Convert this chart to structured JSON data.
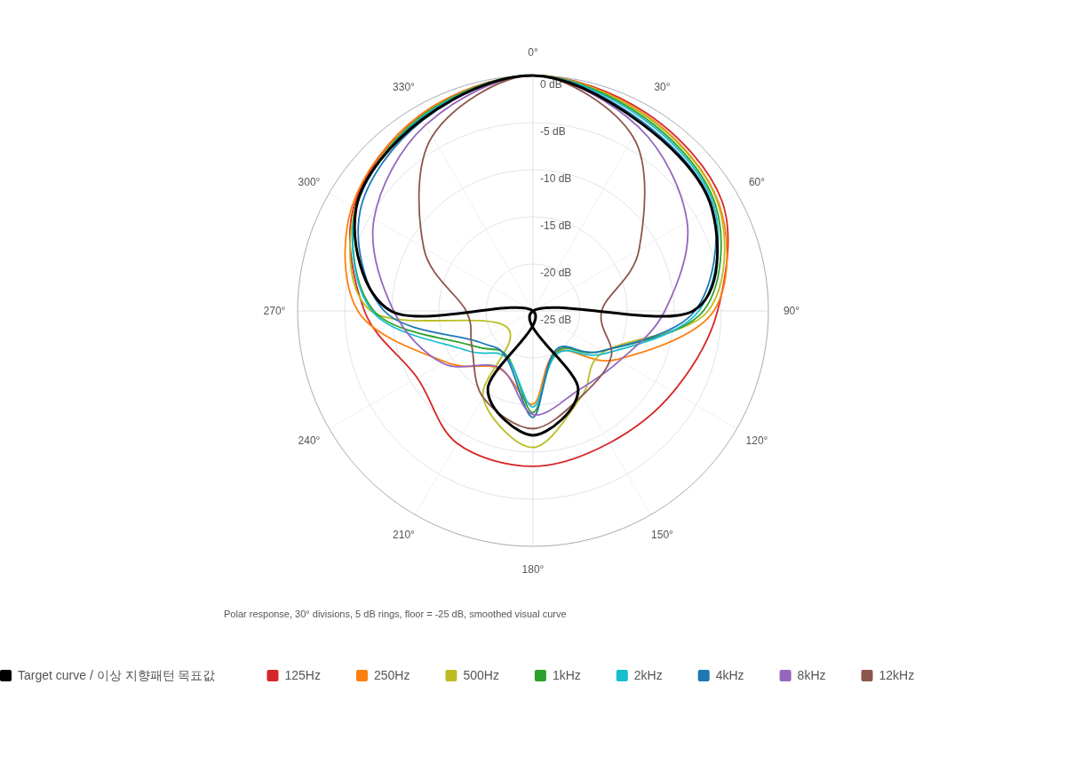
{
  "chart_data": {
    "type": "radar",
    "categories": [
      "0°",
      "30°",
      "60°",
      "90°",
      "120°",
      "150°",
      "180°",
      "210°",
      "240°",
      "270°",
      "300°",
      "330°"
    ],
    "ylim": [
      -25,
      0
    ],
    "yticks": [
      {
        "value": -25,
        "label": "-25 dB"
      },
      {
        "value": -20,
        "label": "-20 dB"
      },
      {
        "value": -15,
        "label": "-15 dB"
      },
      {
        "value": -10,
        "label": "-10 dB"
      },
      {
        "value": -5,
        "label": "-5 dB"
      },
      {
        "value": 0,
        "label": "0 dB"
      }
    ],
    "grid": true,
    "legend": "bottom",
    "annotations": [
      "Polar response, 30° divisions, 5 dB rings, floor = -25 dB, smoothed visual curve"
    ],
    "series": [
      {
        "name": "Target curve / 이상 지향패턴 목표값",
        "color": "#000000",
        "values": [
          0,
          -2,
          -3.1,
          -8,
          -25,
          -15.4,
          -11.8,
          -15.4,
          -25,
          -9.9,
          -3.3,
          -1.5
        ]
      },
      {
        "name": "125Hz",
        "color": "#d62728",
        "values": [
          0,
          -0.8,
          -1.8,
          -5.4,
          -7.8,
          -8.8,
          -8.5,
          -8.8,
          -10.8,
          -7.1,
          -3,
          -1
        ]
      },
      {
        "name": "250Hz",
        "color": "#ff7f0e",
        "values": [
          0,
          -1,
          -2.2,
          -5.8,
          -14.7,
          -20,
          -15.1,
          -17.9,
          -14.2,
          -6.4,
          -2.8,
          -1
        ]
      },
      {
        "name": "500Hz",
        "color": "#bcbd22",
        "values": [
          0,
          -1.1,
          -2.3,
          -6.4,
          -16.3,
          -14.6,
          -10.5,
          -14.4,
          -21.7,
          -7.8,
          -3.2,
          -1.2
        ]
      },
      {
        "name": "1kHz",
        "color": "#2ca02c",
        "values": [
          0,
          -1.3,
          -2.6,
          -6.9,
          -16.5,
          -20,
          -14.2,
          -19.5,
          -17.6,
          -8.1,
          -3.3,
          -1.2
        ]
      },
      {
        "name": "2kHz",
        "color": "#17becf",
        "values": [
          0,
          -1.5,
          -2.8,
          -7.4,
          -16,
          -19.8,
          -14.8,
          -19.3,
          -16.7,
          -7.9,
          -3.3,
          -1.3
        ]
      },
      {
        "name": "4kHz",
        "color": "#1f77b4",
        "values": [
          0,
          -1.8,
          -3,
          -7.8,
          -16.5,
          -20.2,
          -13.7,
          -19.3,
          -18.4,
          -9.2,
          -3.8,
          -1.6
        ]
      },
      {
        "name": "8kHz",
        "color": "#9467bd",
        "values": [
          0,
          -2.5,
          -6.1,
          -11,
          -14.4,
          -15.3,
          -14,
          -18,
          -13.9,
          -10.2,
          -5.5,
          -2.2
        ]
      },
      {
        "name": "12kHz",
        "color": "#8c564b",
        "values": [
          0,
          -3.7,
          -12,
          -17.7,
          -15.4,
          -14.6,
          -12.5,
          -14.4,
          -17.5,
          -17.9,
          -11.6,
          -3.6
        ]
      }
    ]
  }
}
